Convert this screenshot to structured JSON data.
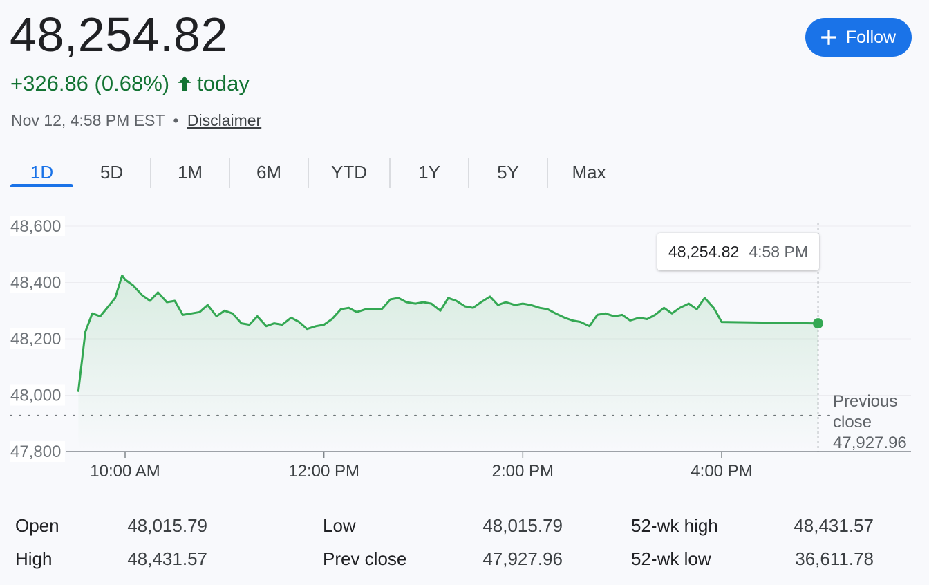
{
  "quote": {
    "price": "48,254.82",
    "change": "+326.86 (0.68%)",
    "change_period": "today",
    "timestamp": "Nov 12, 4:58 PM EST",
    "separator": "•",
    "disclaimer_label": "Disclaimer",
    "up_color": "#137333"
  },
  "follow_button": {
    "label": "Follow",
    "icon": "plus-icon"
  },
  "range_tabs": [
    "1D",
    "5D",
    "1M",
    "6M",
    "YTD",
    "1Y",
    "5Y",
    "Max"
  ],
  "active_tab": "1D",
  "tooltip": {
    "value": "48,254.82",
    "time": "4:58 PM"
  },
  "chart_data": {
    "type": "line",
    "x_unit": "time of day (hours)",
    "x_range": [
      9.5,
      16.97
    ],
    "ylim": [
      47800,
      48600
    ],
    "yticks": [
      47800,
      48000,
      48200,
      48400,
      48600
    ],
    "ytick_labels": [
      "47,800",
      "48,000",
      "48,200",
      "48,400",
      "48,600"
    ],
    "xticks": [
      10,
      12,
      14,
      16
    ],
    "xtick_labels": [
      "10:00 AM",
      "12:00 PM",
      "2:00 PM",
      "4:00 PM"
    ],
    "grid": "horizontal",
    "line_color": "#34a853",
    "previous_close": {
      "value": 47927.96,
      "label_line1": "Previous",
      "label_line2": "close",
      "label_value": "47,927.96"
    },
    "last_point": {
      "x": 16.97,
      "y": 48254.82
    },
    "x": [
      9.53,
      9.6,
      9.67,
      9.75,
      9.82,
      9.9,
      9.97,
      10.0,
      10.08,
      10.17,
      10.25,
      10.33,
      10.42,
      10.5,
      10.58,
      10.67,
      10.75,
      10.83,
      10.92,
      11.0,
      11.08,
      11.17,
      11.25,
      11.33,
      11.42,
      11.5,
      11.58,
      11.67,
      11.75,
      11.83,
      11.92,
      12.0,
      12.08,
      12.17,
      12.25,
      12.33,
      12.42,
      12.5,
      12.58,
      12.67,
      12.75,
      12.83,
      12.92,
      13.0,
      13.08,
      13.17,
      13.25,
      13.33,
      13.42,
      13.5,
      13.58,
      13.67,
      13.75,
      13.83,
      13.92,
      14.0,
      14.08,
      14.17,
      14.25,
      14.33,
      14.42,
      14.5,
      14.58,
      14.67,
      14.75,
      14.83,
      14.92,
      15.0,
      15.08,
      15.17,
      15.25,
      15.33,
      15.42,
      15.5,
      15.58,
      15.67,
      15.75,
      15.83,
      15.92,
      16.0,
      16.97
    ],
    "y": [
      48015,
      48225,
      48290,
      48280,
      48310,
      48345,
      48425,
      48410,
      48390,
      48355,
      48335,
      48365,
      48330,
      48335,
      48285,
      48290,
      48295,
      48320,
      48280,
      48300,
      48290,
      48255,
      48250,
      48280,
      48245,
      48255,
      48250,
      48275,
      48260,
      48235,
      48245,
      48250,
      48270,
      48305,
      48310,
      48295,
      48305,
      48305,
      48305,
      48340,
      48345,
      48330,
      48325,
      48330,
      48325,
      48300,
      48345,
      48335,
      48315,
      48310,
      48330,
      48350,
      48320,
      48330,
      48320,
      48325,
      48320,
      48310,
      48305,
      48290,
      48275,
      48265,
      48260,
      48245,
      48285,
      48290,
      48280,
      48285,
      48265,
      48275,
      48270,
      48285,
      48310,
      48290,
      48310,
      48325,
      48305,
      48345,
      48310,
      48260,
      48254.82
    ]
  },
  "stats": [
    {
      "label": "Open",
      "value": "48,015.79"
    },
    {
      "label": "High",
      "value": "48,431.57"
    },
    {
      "label": "Low",
      "value": "48,015.79"
    },
    {
      "label": "Prev close",
      "value": "47,927.96"
    },
    {
      "label": "52-wk high",
      "value": "48,431.57"
    },
    {
      "label": "52-wk low",
      "value": "36,611.78"
    }
  ]
}
